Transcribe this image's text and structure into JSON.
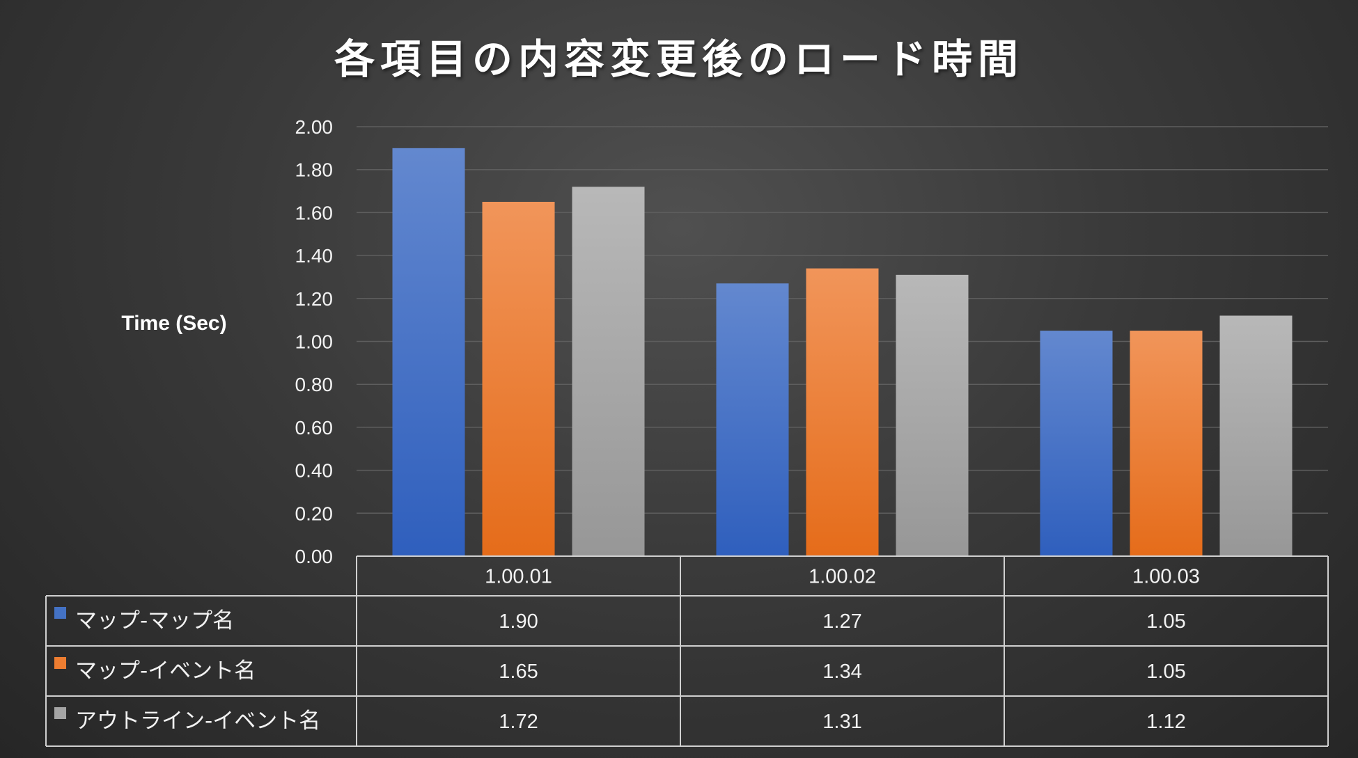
{
  "chart_data": {
    "type": "bar",
    "title": "各項目の内容変更後のロード時間",
    "ylabel": "Time (Sec)",
    "xlabel": "",
    "ylim": [
      0,
      2
    ],
    "yticks": [
      "0.00",
      "0.20",
      "0.40",
      "0.60",
      "0.80",
      "1.00",
      "1.20",
      "1.40",
      "1.60",
      "1.80",
      "2.00"
    ],
    "categories": [
      "1.00.01",
      "1.00.02",
      "1.00.03"
    ],
    "grid": true,
    "legend": "data-table",
    "series": [
      {
        "name": "マップ-マップ名",
        "values": [
          1.9,
          1.27,
          1.05
        ],
        "labels": [
          "1.90",
          "1.27",
          "1.05"
        ],
        "color": "#4472c4"
      },
      {
        "name": "マップ-イベント名",
        "values": [
          1.65,
          1.34,
          1.05
        ],
        "labels": [
          "1.65",
          "1.34",
          "1.05"
        ],
        "color": "#ed7d31"
      },
      {
        "name": "アウトライン-イベント名",
        "values": [
          1.72,
          1.31,
          1.12
        ],
        "labels": [
          "1.72",
          "1.31",
          "1.12"
        ],
        "color": "#a5a5a5"
      }
    ]
  }
}
